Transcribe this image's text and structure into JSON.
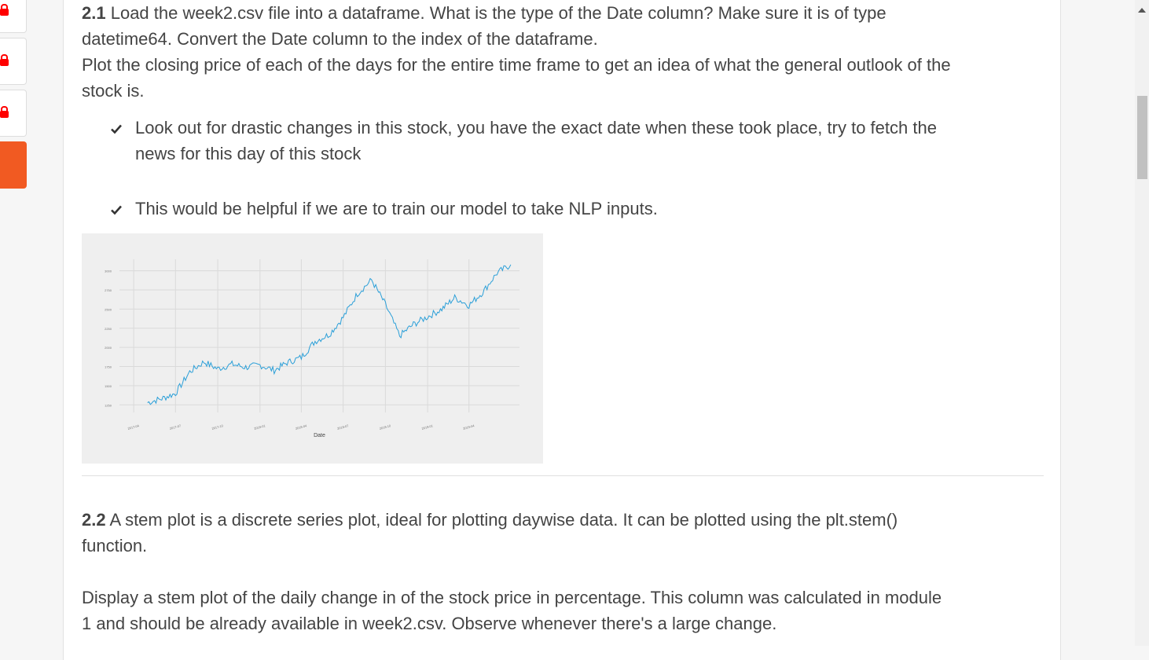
{
  "section_21": {
    "number": "2.1",
    "text_line1": "Load the week2.csv file into a dataframe. What is the type of the Date column? Make sure it is of type",
    "text_line2": "datetime64. Convert the Date column to the index of the dataframe.",
    "text_line3": "Plot the closing price of each of the days for the entire time frame to get an idea of what the general outlook of the",
    "text_line4": "stock is.",
    "bullets": [
      {
        "line1": "Look out for drastic changes in this stock, you have the exact date when these took place, try to fetch the",
        "line2": "news for this day of this stock"
      },
      {
        "line1": "This would be helpful if we are to train our model to take NLP inputs."
      }
    ]
  },
  "section_22": {
    "number": "2.2",
    "text_line1": "A stem plot is a discrete series plot, ideal for plotting daywise data. It can be plotted using the plt.stem()",
    "text_line2": "function.",
    "text_line3": "Display a stem plot of the daily change in of the stock price in percentage. This column was calculated in module",
    "text_line4": "1 and should be already available in week2.csv. Observe whenever there's a large change."
  },
  "icons": [
    "lock-icon",
    "lock-icon",
    "lock-icon",
    "checkmark-icon",
    "checkmark-icon"
  ],
  "colors": {
    "accent_orange": "#f15a22",
    "lock_red": "#ff0000",
    "line_blue": "#2b9fd8"
  },
  "chart_data": {
    "type": "line",
    "xlabel": "Date",
    "ylabel": "",
    "title": "",
    "grid": true,
    "x_ticks": [
      "2017-04",
      "2017-07",
      "2017-10",
      "2018-01",
      "2018-04",
      "2018-07",
      "2018-10",
      "2019-01",
      "2019-04"
    ],
    "y_ticks": [
      1250,
      1500,
      1750,
      2000,
      2250,
      2500,
      2750,
      3000
    ],
    "ylim": [
      1150,
      3150
    ],
    "series": [
      {
        "x": [
          "2017-05",
          "2017-06",
          "2017-07",
          "2017-08",
          "2017-09",
          "2017-10",
          "2017-11",
          "2017-12",
          "2018-01",
          "2018-02",
          "2018-03",
          "2018-04",
          "2018-05",
          "2018-06",
          "2018-07",
          "2018-08",
          "2018-09",
          "2018-10",
          "2018-11",
          "2018-12",
          "2019-01",
          "2019-02",
          "2019-03",
          "2019-04",
          "2019-05",
          "2019-06",
          "2019-07"
        ],
        "y": [
          1280,
          1330,
          1400,
          1680,
          1810,
          1720,
          1780,
          1740,
          1770,
          1700,
          1800,
          1870,
          2080,
          2170,
          2390,
          2700,
          2880,
          2560,
          2150,
          2300,
          2400,
          2500,
          2650,
          2550,
          2720,
          2970,
          3080
        ]
      }
    ]
  }
}
